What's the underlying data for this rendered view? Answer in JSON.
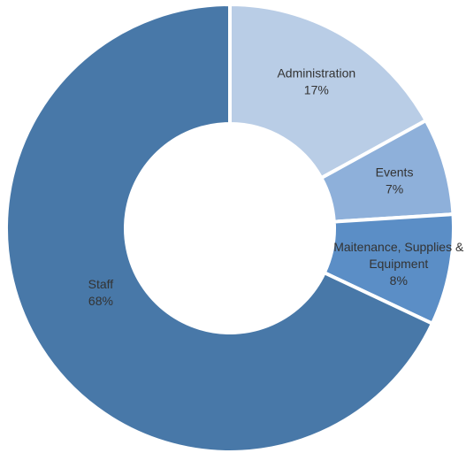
{
  "chart_data": {
    "type": "pie",
    "variant": "donut",
    "start": "12 o'clock",
    "direction": "clockwise",
    "slices": [
      {
        "label": [
          "Administration"
        ],
        "value": 17,
        "value_label": "17%",
        "color": "#b9cde6"
      },
      {
        "label": [
          "Events"
        ],
        "value": 7,
        "value_label": "7%",
        "color": "#8eb0da"
      },
      {
        "label": [
          "Maitenance, Supplies &",
          "Equipment"
        ],
        "value": 8,
        "value_label": "8%",
        "color": "#5b8ec6"
      },
      {
        "label": [
          "Staff"
        ],
        "value": 68,
        "value_label": "68%",
        "color": "#4878a8"
      }
    ]
  }
}
